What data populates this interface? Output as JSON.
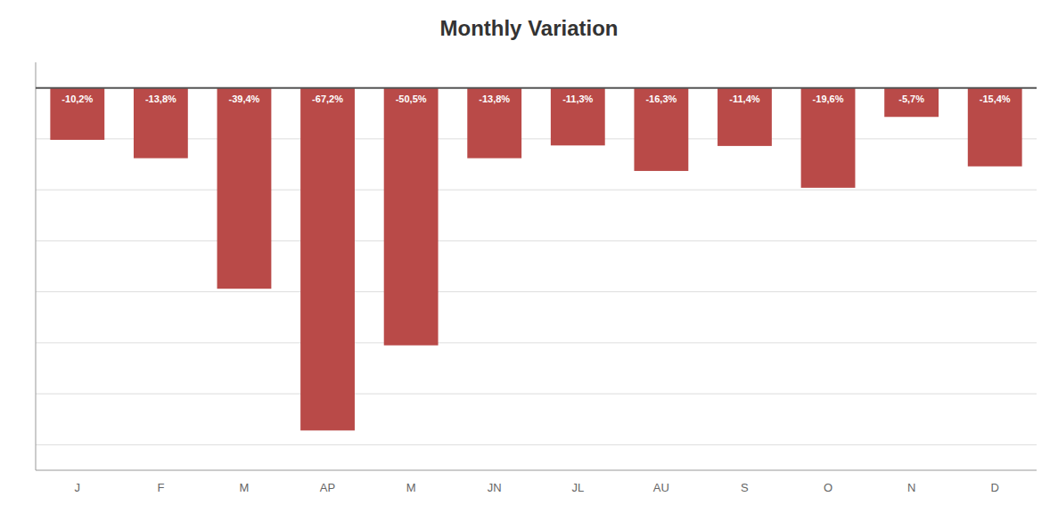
{
  "chart_data": {
    "type": "bar",
    "title": "Monthly Variation",
    "categories": [
      "J",
      "F",
      "M",
      "AP",
      "M",
      "JN",
      "JL",
      "AU",
      "S",
      "O",
      "N",
      "D"
    ],
    "values": [
      -10.2,
      -13.8,
      -39.4,
      -67.2,
      -50.5,
      -13.8,
      -11.3,
      -16.3,
      -11.4,
      -19.6,
      -5.7,
      -15.4
    ],
    "value_labels": [
      "-10,2%",
      "-13,8%",
      "-39,4%",
      "-67,2%",
      "-50,5%",
      "-13,8%",
      "-11,3%",
      "-16,3%",
      "-11,4%",
      "-19,6%",
      "-5,7%",
      "-15,4%"
    ],
    "color": "#b94a48",
    "ylim": [
      -75,
      5
    ],
    "yticks": [
      -70,
      -60,
      -50,
      -40,
      -30,
      -20,
      -10,
      0
    ],
    "grid": true,
    "data_labels": true,
    "tick_labels": "x"
  }
}
